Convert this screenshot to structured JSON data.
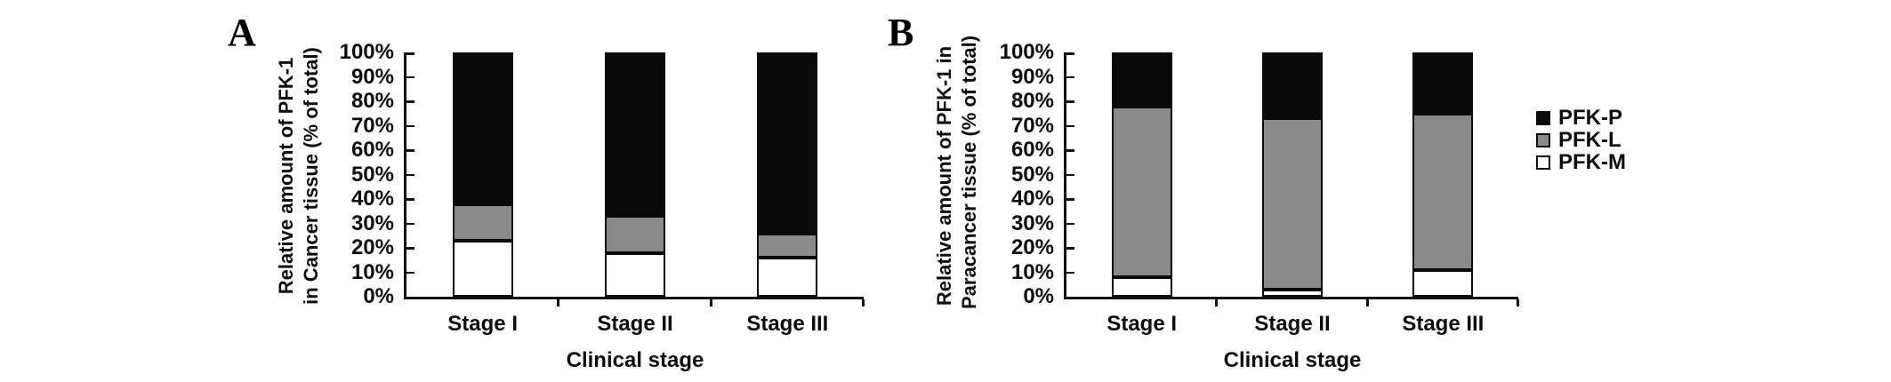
{
  "figure": {
    "background": "#ffffff",
    "panel_a_label": "A",
    "panel_b_label": "B"
  },
  "colors": {
    "pfk_p": "#0a0a0a",
    "pfk_l": "#8a8a8a",
    "pfk_m": "#ffffff",
    "axis": "#111111"
  },
  "chart_data": [
    {
      "type": "bar",
      "stacked": true,
      "panel_label": "A",
      "categories": [
        "Stage I",
        "Stage II",
        "Stage III"
      ],
      "series": [
        {
          "name": "PFK-M",
          "color": "#ffffff",
          "values": [
            23,
            18,
            16
          ]
        },
        {
          "name": "PFK-L",
          "color": "#8a8a8a",
          "values": [
            15,
            15,
            10
          ]
        },
        {
          "name": "PFK-P",
          "color": "#0a0a0a",
          "values": [
            62,
            67,
            74
          ]
        }
      ],
      "ylabel_lines": [
        "Relative amount of PFK-1",
        "in Cancer tissue (% of total)"
      ],
      "xlabel": "Clinical stage",
      "ylim": [
        0,
        100
      ],
      "ytick_step": 10,
      "ytick_labels": [
        "0%",
        "10%",
        "20%",
        "30%",
        "40%",
        "50%",
        "60%",
        "70%",
        "80%",
        "90%",
        "100%"
      ],
      "grid": false,
      "legend_position": "none"
    },
    {
      "type": "bar",
      "stacked": true,
      "panel_label": "B",
      "categories": [
        "Stage I",
        "Stage II",
        "Stage III"
      ],
      "series": [
        {
          "name": "PFK-M",
          "color": "#ffffff",
          "values": [
            8,
            3,
            11
          ]
        },
        {
          "name": "PFK-L",
          "color": "#8a8a8a",
          "values": [
            70,
            70,
            64
          ]
        },
        {
          "name": "PFK-P",
          "color": "#0a0a0a",
          "values": [
            22,
            27,
            25
          ]
        }
      ],
      "ylabel_lines": [
        "Relative amount of PFK-1 in",
        "Paracancer tissue (% of total)"
      ],
      "xlabel": "Clinical stage",
      "ylim": [
        0,
        100
      ],
      "ytick_step": 10,
      "ytick_labels": [
        "0%",
        "10%",
        "20%",
        "30%",
        "40%",
        "50%",
        "60%",
        "70%",
        "80%",
        "90%",
        "100%"
      ],
      "grid": false,
      "legend_position": "right"
    }
  ],
  "legend": {
    "items": [
      {
        "label": "PFK-P",
        "color": "#0a0a0a"
      },
      {
        "label": "PFK-L",
        "color": "#8a8a8a"
      },
      {
        "label": "PFK-M",
        "color": "#ffffff"
      }
    ]
  }
}
